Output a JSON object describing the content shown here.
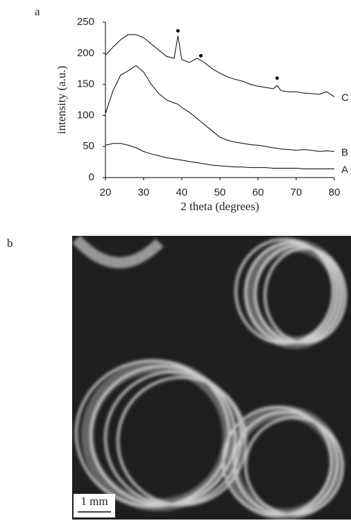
{
  "panel_labels": [
    "a",
    "b"
  ],
  "chart_data": {
    "type": "line",
    "xlabel": "2 theta (degrees)",
    "ylabel": "intensity (a.u.)",
    "x": [
      20,
      22,
      24,
      26,
      28,
      30,
      32,
      34,
      36,
      38,
      39,
      40,
      42,
      44,
      46,
      48,
      50,
      52,
      54,
      56,
      58,
      60,
      62,
      64,
      65,
      66,
      68,
      70,
      72,
      74,
      76,
      78,
      80
    ],
    "series": [
      {
        "name": "A",
        "color": "#000000",
        "values": [
          52,
          55,
          55,
          52,
          48,
          42,
          38,
          35,
          32,
          30,
          29,
          28,
          26,
          24,
          22,
          20,
          19,
          18,
          17,
          17,
          16,
          16,
          16,
          15,
          15,
          15,
          15,
          15,
          14,
          14,
          14,
          14,
          14
        ]
      },
      {
        "name": "B",
        "color": "#000000",
        "values": [
          103,
          140,
          165,
          172,
          180,
          170,
          150,
          135,
          125,
          120,
          118,
          113,
          105,
          95,
          85,
          75,
          65,
          60,
          57,
          55,
          53,
          52,
          50,
          48,
          47,
          46,
          45,
          44,
          45,
          44,
          42,
          43,
          42
        ]
      },
      {
        "name": "C",
        "color": "#000000",
        "values": [
          197,
          210,
          222,
          230,
          230,
          225,
          215,
          205,
          195,
          192,
          228,
          190,
          185,
          192,
          185,
          175,
          168,
          162,
          158,
          155,
          150,
          147,
          145,
          143,
          148,
          140,
          138,
          138,
          136,
          135,
          134,
          138,
          130
        ]
      }
    ],
    "peak_markers": {
      "x": [
        39,
        45,
        65
      ],
      "y": [
        236,
        196,
        160
      ]
    },
    "xlim": [
      20,
      80
    ],
    "xticks": [
      20,
      30,
      40,
      50,
      60,
      70,
      80
    ],
    "ylim": [
      0,
      250
    ],
    "yticks": [
      0,
      50,
      100,
      150,
      200,
      250
    ]
  },
  "scale_bar": "1 mm"
}
